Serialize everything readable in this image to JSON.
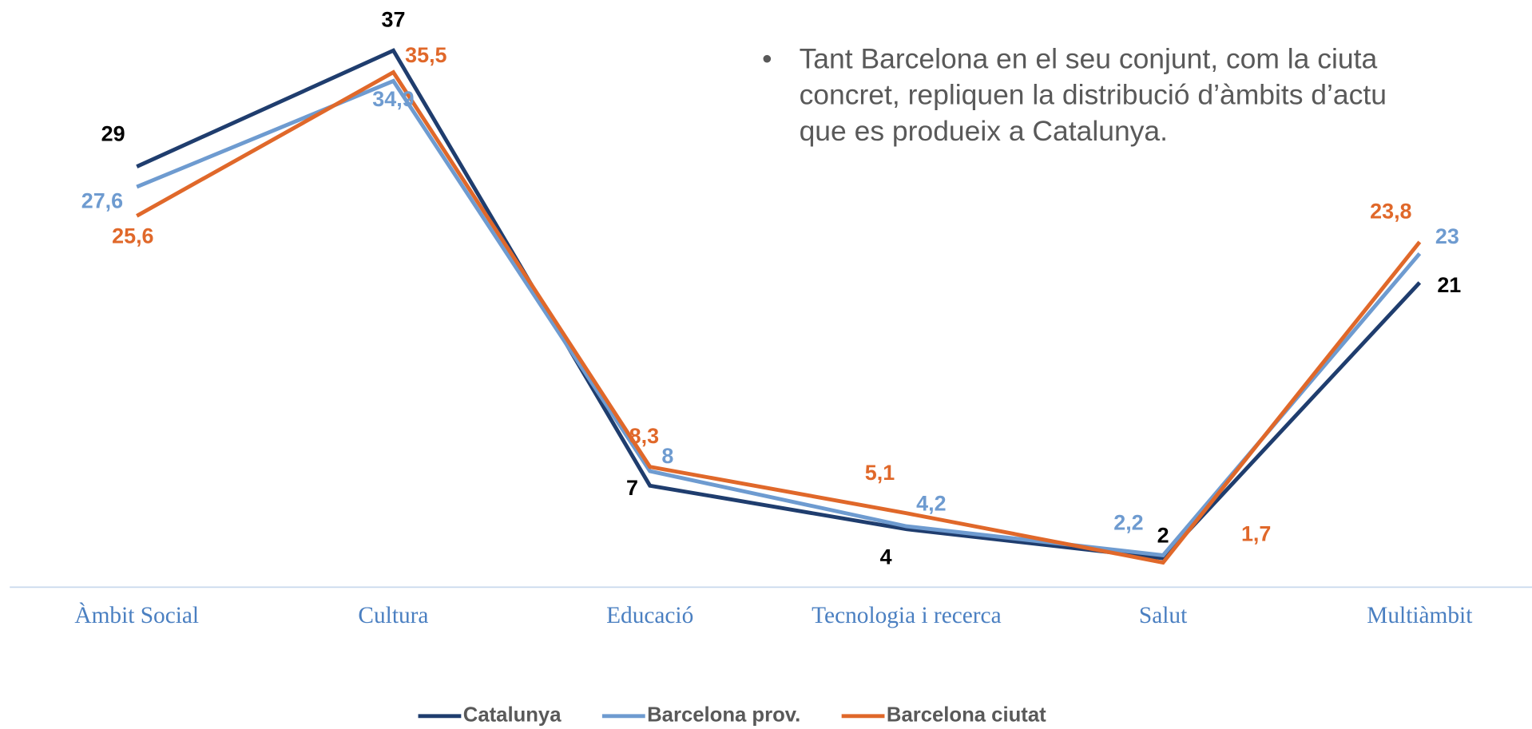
{
  "chart_data": {
    "type": "line",
    "categories": [
      "Àmbit Social",
      "Cultura",
      "Educació",
      "Tecnologia i recerca",
      "Salut",
      "Multiàmbit"
    ],
    "series": [
      {
        "name": "Catalunya",
        "color": "#1f3d6e",
        "values": [
          29,
          37,
          7,
          4,
          2,
          21
        ]
      },
      {
        "name": "Barcelona prov.",
        "color": "#6e9bd0",
        "values": [
          27.6,
          34.9,
          8,
          4.2,
          2.2,
          23
        ],
        "value_labels": [
          "27,6",
          "34,9",
          "8",
          "4,2",
          "2,2",
          "23"
        ]
      },
      {
        "name": "Barcelona ciutat",
        "color": "#e0682a",
        "values": [
          25.6,
          35.5,
          8.3,
          5.1,
          1.7,
          23.8
        ],
        "value_labels": [
          "25,6",
          "35,5",
          "8,3",
          "5,1",
          "1,7",
          "23,8"
        ]
      }
    ],
    "ylim": [
      0,
      40
    ],
    "annotation": [
      "Tant Barcelona en el seu conjunt, com la ciuta",
      "concret, repliquen la distribució d’àmbits d’actu",
      "que es produeix a Catalunya."
    ],
    "legend": "bottom"
  }
}
